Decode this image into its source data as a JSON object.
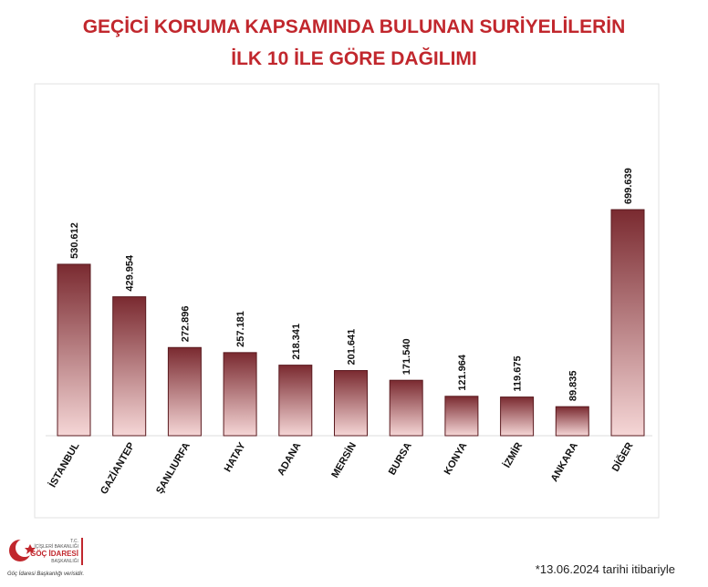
{
  "chart_data": {
    "type": "bar",
    "title": [
      "GEÇİCİ KORUMA KAPSAMINDA BULUNAN SURİYELİLERİN",
      "İLK 10 İLE GÖRE DAĞILIMI"
    ],
    "categories": [
      "İSTANBUL",
      "GAZİANTEP",
      "ŞANLIURFA",
      "HATAY",
      "ADANA",
      "MERSİN",
      "BURSA",
      "KONYA",
      "İZMİR",
      "ANKARA",
      "DİĞER"
    ],
    "values": [
      530612,
      429954,
      272896,
      257181,
      218341,
      201641,
      171540,
      121964,
      119675,
      89835,
      699639
    ],
    "value_labels": [
      "530.612",
      "429.954",
      "272.896",
      "257.181",
      "218.341",
      "201.641",
      "171.540",
      "121.964",
      "119.675",
      "89.835",
      "699.639"
    ],
    "color": "#7a2a30"
  },
  "footnote": "*13.06.2024 tarihi itibariyle",
  "logo": {
    "line1": "T.C.",
    "line2": "İÇİŞLERİ BAKANLIĞI",
    "line3": "GÖÇ İDARESİ",
    "line4": "BAŞKANLIĞI",
    "caption": "Göç İdaresi Başkanlığı verisidir."
  }
}
